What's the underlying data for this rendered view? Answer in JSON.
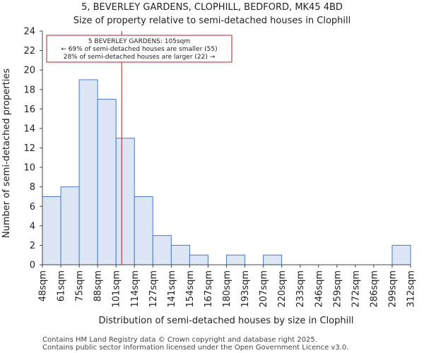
{
  "chart_data": {
    "type": "bar",
    "title": "5, BEVERLEY GARDENS, CLOPHILL, BEDFORD, MK45 4BD",
    "subtitle": "Size of property relative to semi-detached houses in Clophill",
    "xlabel": "Distribution of semi-detached houses by size in Clophill",
    "ylabel": "Number of semi-detached properties",
    "bin_edges": [
      "48sqm",
      "61sqm",
      "75sqm",
      "88sqm",
      "101sqm",
      "114sqm",
      "127sqm",
      "141sqm",
      "154sqm",
      "167sqm",
      "180sqm",
      "193sqm",
      "207sqm",
      "220sqm",
      "233sqm",
      "246sqm",
      "259sqm",
      "272sqm",
      "286sqm",
      "299sqm",
      "312sqm"
    ],
    "values": [
      7,
      8,
      19,
      17,
      13,
      7,
      3,
      2,
      1,
      0,
      1,
      0,
      1,
      0,
      0,
      0,
      0,
      0,
      0,
      2
    ],
    "ylim": [
      0,
      24
    ],
    "yticks": [
      0,
      2,
      4,
      6,
      8,
      10,
      12,
      14,
      16,
      18,
      20,
      22,
      24
    ],
    "marker": {
      "value_sqm": 105,
      "color": "#b22222",
      "label_lines": [
        "5 BEVERLEY GARDENS: 105sqm",
        "← 69% of semi-detached houses are smaller (55)",
        "28% of semi-detached houses are larger (22) →"
      ]
    },
    "grid": false,
    "bar_fill": "#dce6f4",
    "bar_edge": "#4a78c4"
  },
  "footer": {
    "line1": "Contains HM Land Registry data © Crown copyright and database right 2025.",
    "line2": "Contains public sector information licensed under the Open Government Licence v3.0."
  }
}
